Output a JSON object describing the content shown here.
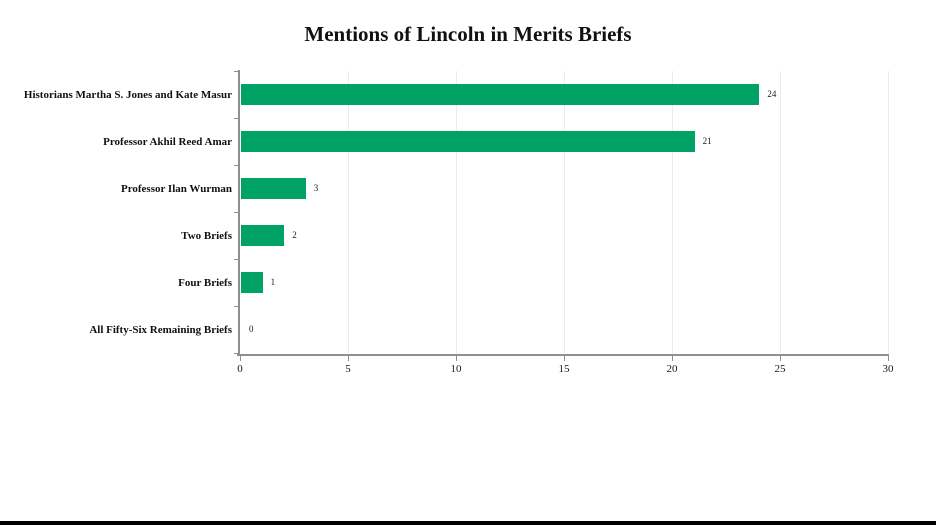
{
  "chart_data": {
    "type": "bar",
    "orientation": "horizontal",
    "title": "Mentions of Lincoln in Merits Briefs",
    "categories": [
      "Historians Martha S. Jones and Kate Masur",
      "Professor Akhil Reed Amar",
      "Professor Ilan Wurman",
      "Two Briefs",
      "Four Briefs",
      "All Fifty-Six Remaining Briefs"
    ],
    "values": [
      24,
      21,
      3,
      2,
      1,
      0
    ],
    "value_labels": [
      "24",
      "21",
      "3",
      "2",
      "1",
      "0"
    ],
    "x_ticks": [
      "0",
      "5",
      "10",
      "15",
      "20",
      "25",
      "30"
    ],
    "xlim": [
      0,
      30
    ],
    "xlabel": "",
    "ylabel": "",
    "legend": "none",
    "grid": "vertical-light-gridlines",
    "bar_color": "#00a266",
    "axis_color": "#8f8f8f",
    "gridline_color": "#ececec",
    "text_color": "#1a1a1a"
  }
}
